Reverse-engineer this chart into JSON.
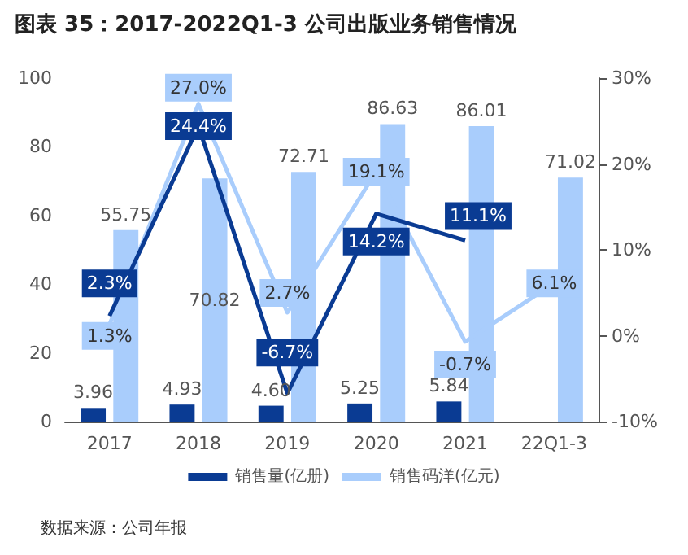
{
  "chart_data": {
    "type": "bar",
    "title": "图表 35：2017-2022Q1-3 公司出版业务销售情况",
    "categories": [
      "2017",
      "2018",
      "2019",
      "2020",
      "2021",
      "22Q1-3"
    ],
    "series": [
      {
        "name": "销售量(亿册)",
        "color": "#0a3b93",
        "values": [
          3.96,
          4.93,
          4.6,
          5.25,
          5.84,
          null
        ],
        "value_labels": [
          "3.96",
          "4.93",
          "4.60",
          "5.25",
          "5.84",
          null
        ]
      },
      {
        "name": "销售码洋(亿元)",
        "color": "#a9cdfc",
        "values": [
          55.75,
          70.82,
          72.71,
          86.63,
          86.01,
          71.02
        ],
        "value_labels": [
          "55.75",
          "70.82",
          "72.71",
          "86.63",
          "86.01",
          "71.02"
        ]
      },
      {
        "type": "line",
        "axis": "y2",
        "color": "#0a3b93",
        "values": [
          2.3,
          24.4,
          -6.7,
          14.2,
          11.1,
          null
        ],
        "value_labels": [
          "2.3%",
          "24.4%",
          "-6.7%",
          "14.2%",
          "11.1%",
          null
        ]
      },
      {
        "type": "line",
        "axis": "y2",
        "color": "#a9cdfc",
        "values": [
          1.3,
          27.0,
          2.7,
          19.1,
          -0.7,
          6.1
        ],
        "value_labels": [
          "1.3%",
          "27.0%",
          "2.7%",
          "19.1%",
          "-0.7%",
          "6.1%"
        ]
      }
    ],
    "ylim": [
      0,
      100
    ],
    "yticks": [
      0,
      20,
      40,
      60,
      80,
      100
    ],
    "y2lim": [
      -10,
      30
    ],
    "y2ticks": [
      {
        "value": -10,
        "label": "-10%"
      },
      {
        "value": 0,
        "label": "0%"
      },
      {
        "value": 10,
        "label": "10%"
      },
      {
        "value": 20,
        "label": "20%"
      },
      {
        "value": 30,
        "label": "30%"
      }
    ],
    "data_labels": true,
    "grid": false,
    "legend": "bottom",
    "line_style": "solid",
    "annotations": [
      "数据来源：公司年报"
    ]
  }
}
